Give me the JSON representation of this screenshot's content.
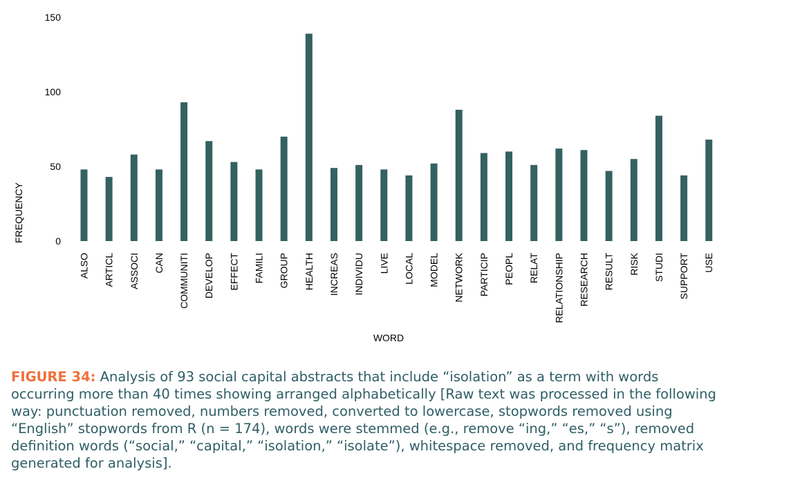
{
  "chart_data": {
    "type": "bar",
    "title": "",
    "xlabel": "WORD",
    "ylabel": "FREQUENCY",
    "ylim": [
      0,
      150
    ],
    "yticks": [
      0,
      50,
      100,
      150
    ],
    "grid": false,
    "bar_color": "#356161",
    "categories": [
      "ALSO",
      "ARTICL",
      "ASSOCI",
      "CAN",
      "COMMUNITI",
      "DEVELOP",
      "EFFECT",
      "FAMILI",
      "GROUP",
      "HEALTH",
      "INCREAS",
      "INDIVIDU",
      "LIVE",
      "LOCAL",
      "MODEL",
      "NETWORK",
      "PARTICIP",
      "PEOPL",
      "RELAT",
      "RELATIONSHIP",
      "RESEARCH",
      "RESULT",
      "RISK",
      "STUDI",
      "SUPPORT",
      "USE"
    ],
    "values": [
      48,
      43,
      58,
      48,
      93,
      67,
      53,
      48,
      70,
      139,
      49,
      51,
      48,
      44,
      52,
      88,
      59,
      60,
      51,
      62,
      61,
      47,
      55,
      84,
      44,
      68
    ]
  },
  "caption": {
    "label": "FIGURE 34:",
    "label_color": "#f0703c",
    "lines": [
      " Analysis of 93 social capital abstracts that include “isolation” as a term with words",
      "occurring more than 40 times showing arranged alphabetically [Raw text was processed in the following",
      "way: punctuation removed, numbers removed, converted to lowercase, stopwords removed using",
      "“English” stopwords from R (n = 174), words were stemmed (e.g., remove “ing,” “es,” “s”), removed",
      "definition words (“social,” “capital,” “isolation,” “isolate”), whitespace removed, and frequency matrix",
      "generated for analysis]."
    ]
  }
}
